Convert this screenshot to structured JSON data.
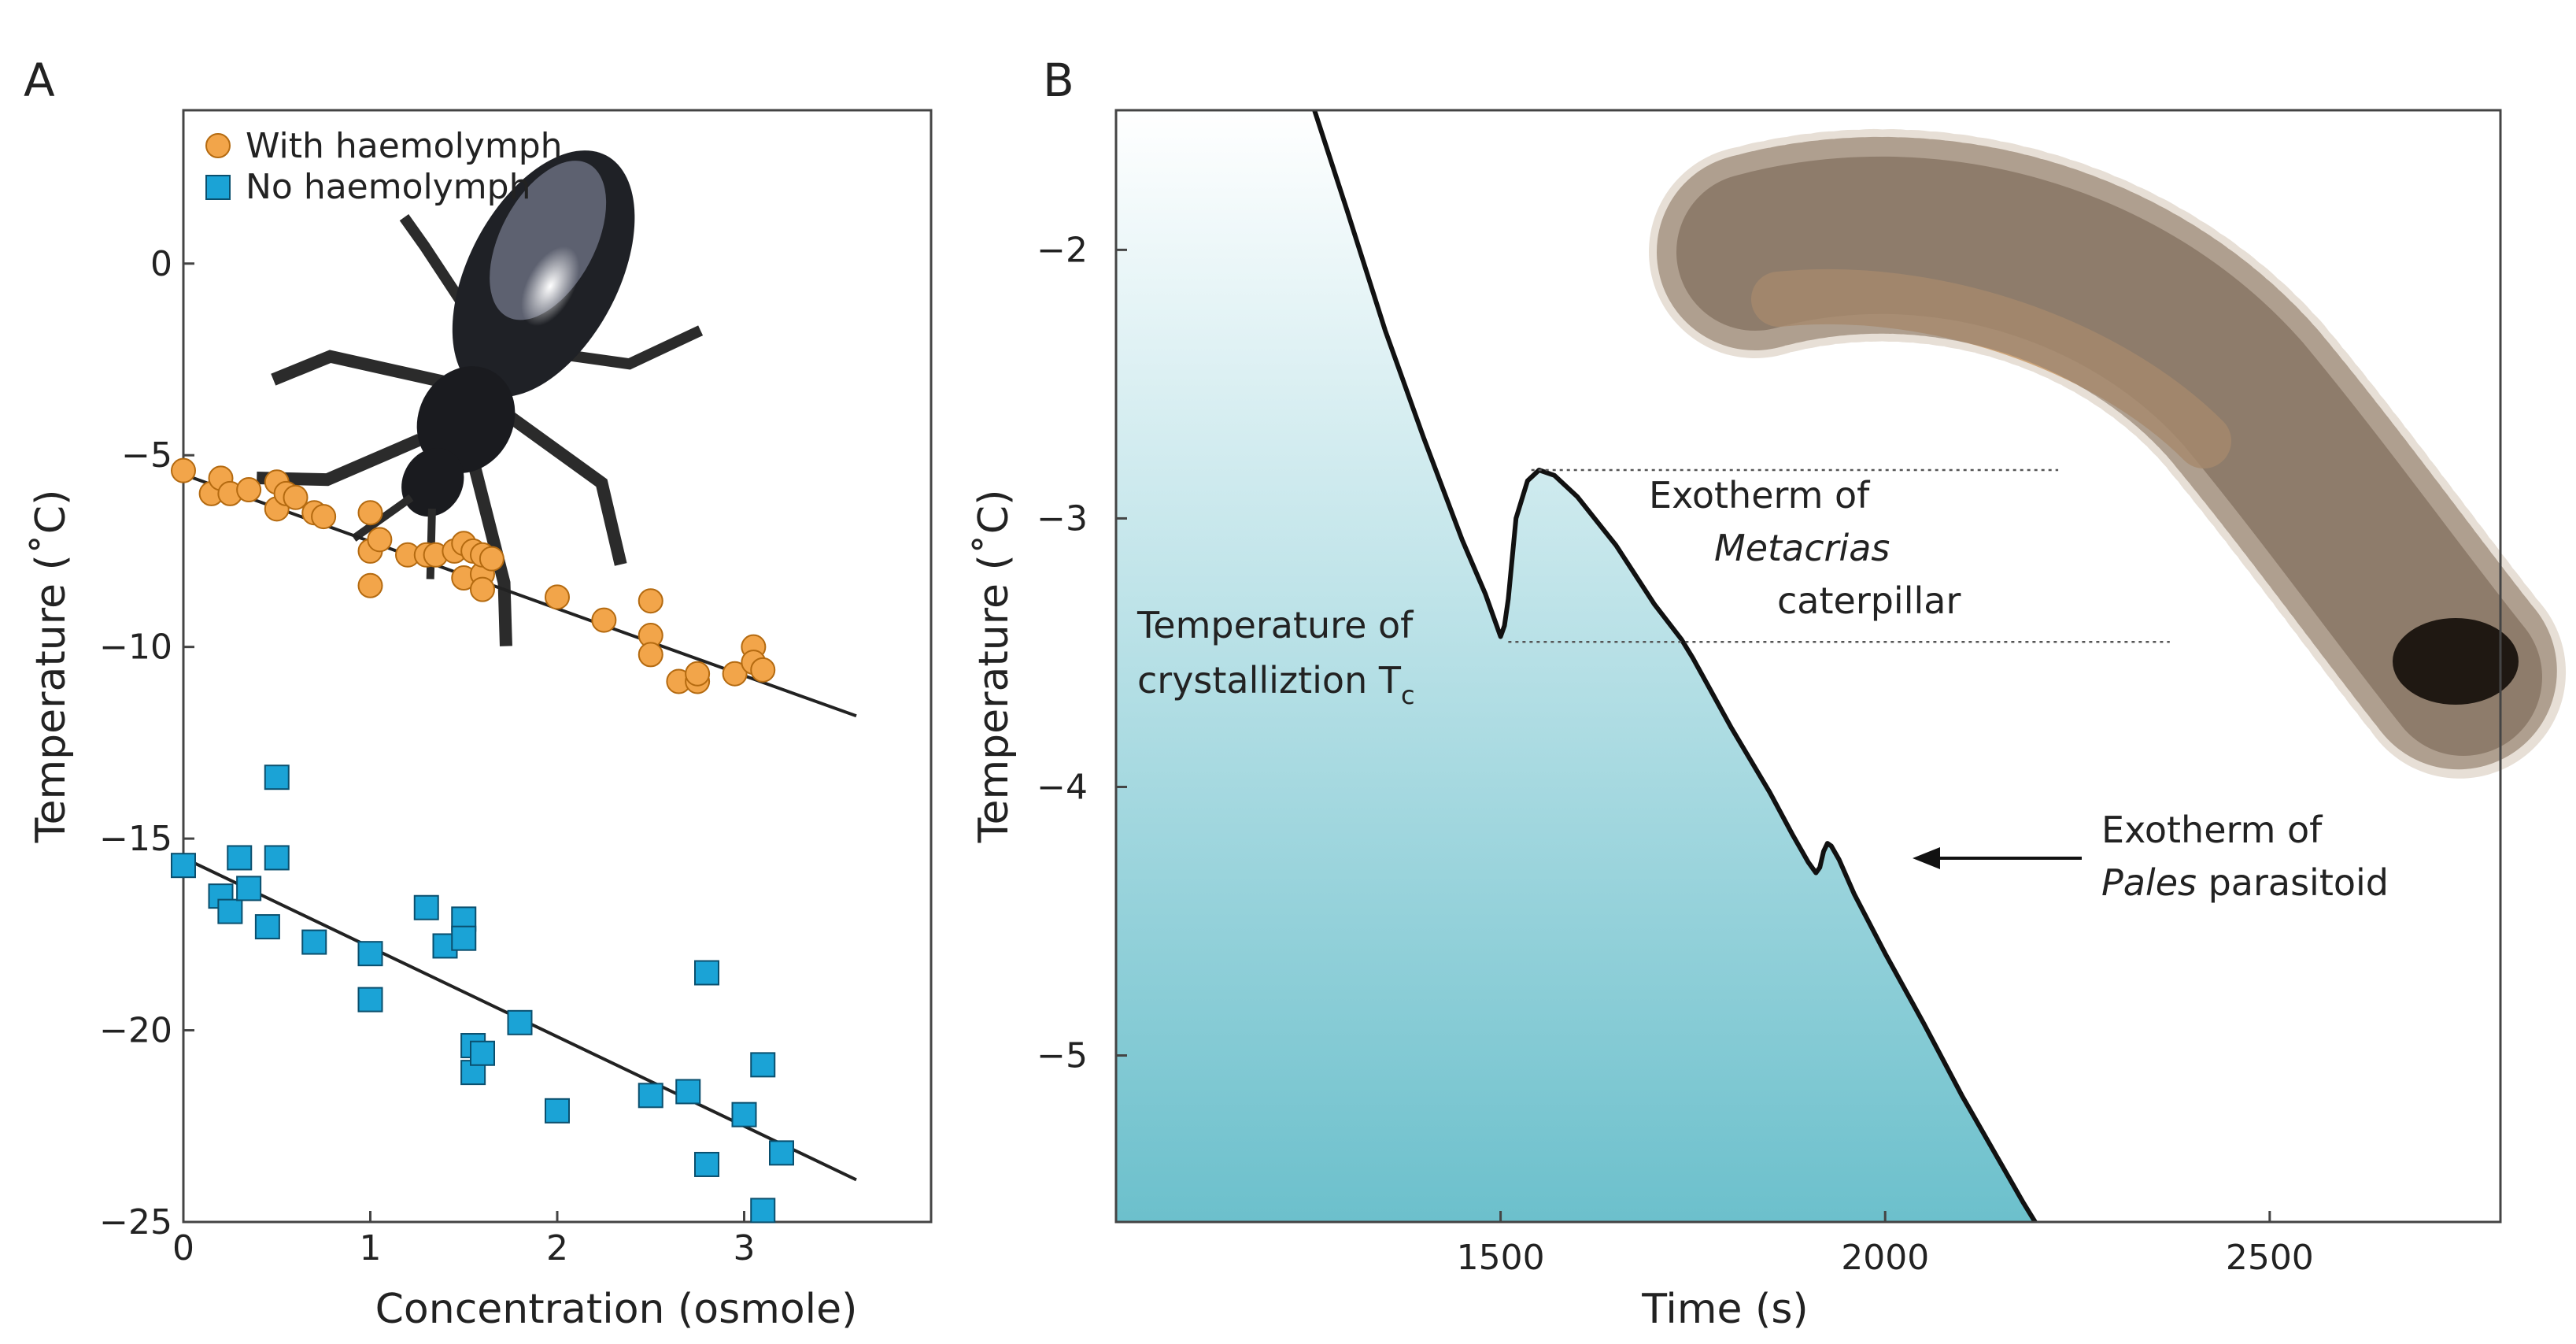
{
  "chart_data": [
    {
      "panel": "A",
      "type": "scatter",
      "xlabel": "Concentration (osmole)",
      "ylabel": "Temperature (˚C)",
      "xlim": [
        0,
        4
      ],
      "ylim": [
        -25,
        4
      ],
      "xticks": [
        0,
        1,
        2,
        3
      ],
      "yticks": [
        0,
        -5,
        -10,
        -15,
        -20,
        -25
      ],
      "xtick_labels": [
        "0",
        "1",
        "2",
        "3"
      ],
      "ytick_labels": [
        "0",
        "−5",
        "−10",
        "−15",
        "−20",
        "−25"
      ],
      "legend": {
        "position": "top-left",
        "entries": [
          "With haemolymph",
          "No haemolymph"
        ]
      },
      "series": [
        {
          "name": "With haemolymph",
          "marker": "circle",
          "color": "#f2a54a",
          "points": [
            [
              0.0,
              -5.4
            ],
            [
              0.15,
              -6.0
            ],
            [
              0.2,
              -5.6
            ],
            [
              0.25,
              -6.0
            ],
            [
              0.35,
              -5.9
            ],
            [
              0.5,
              -5.7
            ],
            [
              0.5,
              -6.4
            ],
            [
              0.55,
              -6.0
            ],
            [
              0.6,
              -6.1
            ],
            [
              0.7,
              -6.5
            ],
            [
              0.75,
              -6.6
            ],
            [
              1.0,
              -6.5
            ],
            [
              1.0,
              -7.5
            ],
            [
              1.0,
              -8.4
            ],
            [
              1.05,
              -7.2
            ],
            [
              1.2,
              -7.6
            ],
            [
              1.3,
              -7.6
            ],
            [
              1.35,
              -7.6
            ],
            [
              1.45,
              -7.5
            ],
            [
              1.5,
              -8.2
            ],
            [
              1.5,
              -7.3
            ],
            [
              1.55,
              -7.5
            ],
            [
              1.6,
              -8.1
            ],
            [
              1.6,
              -8.5
            ],
            [
              1.6,
              -7.6
            ],
            [
              1.65,
              -7.7
            ],
            [
              2.0,
              -8.7
            ],
            [
              2.25,
              -9.3
            ],
            [
              2.5,
              -8.8
            ],
            [
              2.5,
              -9.7
            ],
            [
              2.5,
              -10.2
            ],
            [
              2.65,
              -10.9
            ],
            [
              2.75,
              -10.9
            ],
            [
              2.75,
              -10.7
            ],
            [
              2.95,
              -10.7
            ],
            [
              3.05,
              -10.0
            ],
            [
              3.05,
              -10.4
            ],
            [
              3.1,
              -10.6
            ]
          ],
          "fit": {
            "x": [
              0,
              3.6
            ],
            "y": [
              -5.5,
              -11.8
            ]
          }
        },
        {
          "name": "No haemolymph",
          "marker": "square",
          "color": "#1ba3d6",
          "points": [
            [
              0.0,
              -15.7
            ],
            [
              0.2,
              -16.5
            ],
            [
              0.25,
              -16.9
            ],
            [
              0.3,
              -15.5
            ],
            [
              0.35,
              -16.3
            ],
            [
              0.45,
              -17.3
            ],
            [
              0.5,
              -15.5
            ],
            [
              0.5,
              -13.4
            ],
            [
              0.7,
              -17.7
            ],
            [
              1.0,
              -18.0
            ],
            [
              1.0,
              -19.2
            ],
            [
              1.3,
              -16.8
            ],
            [
              1.4,
              -17.8
            ],
            [
              1.5,
              -17.1
            ],
            [
              1.5,
              -17.6
            ],
            [
              1.55,
              -20.4
            ],
            [
              1.55,
              -21.1
            ],
            [
              1.6,
              -20.6
            ],
            [
              1.8,
              -19.8
            ],
            [
              2.0,
              -22.1
            ],
            [
              2.5,
              -21.7
            ],
            [
              2.7,
              -21.6
            ],
            [
              2.8,
              -23.5
            ],
            [
              2.8,
              -18.5
            ],
            [
              3.0,
              -22.2
            ],
            [
              3.1,
              -20.9
            ],
            [
              3.1,
              -24.7
            ],
            [
              3.2,
              -23.2
            ]
          ],
          "fit": {
            "x": [
              0,
              3.6
            ],
            "y": [
              -15.5,
              -23.9
            ]
          }
        }
      ]
    },
    {
      "panel": "B",
      "type": "area",
      "xlabel": "Time (s)",
      "ylabel": "Temperature (˚C)",
      "xlim": [
        1000,
        2800
      ],
      "ylim": [
        -5.62,
        -1.48
      ],
      "xticks": [
        1500,
        2000,
        2500
      ],
      "yticks": [
        -2,
        -3,
        -4,
        -5
      ],
      "xtick_labels": [
        "1500",
        "2000",
        "2500"
      ],
      "ytick_labels": [
        "−2",
        "−3",
        "−4",
        "−5"
      ],
      "gradient": {
        "top": "#ffffff",
        "bottom": "#6cc0cc"
      },
      "series": [
        {
          "name": "Temperature trace",
          "x": [
            1258,
            1300,
            1350,
            1400,
            1450,
            1480,
            1495,
            1500,
            1505,
            1510,
            1520,
            1535,
            1550,
            1570,
            1600,
            1650,
            1700,
            1735,
            1750,
            1800,
            1850,
            1880,
            1900,
            1910,
            1915,
            1920,
            1925,
            1930,
            1940,
            1960,
            2000,
            2050,
            2100,
            2150,
            2180,
            2195
          ],
          "y": [
            -1.48,
            -1.85,
            -2.3,
            -2.7,
            -3.08,
            -3.28,
            -3.4,
            -3.44,
            -3.4,
            -3.3,
            -3.0,
            -2.86,
            -2.82,
            -2.84,
            -2.92,
            -3.1,
            -3.32,
            -3.45,
            -3.52,
            -3.78,
            -4.02,
            -4.18,
            -4.28,
            -4.32,
            -4.3,
            -4.24,
            -4.21,
            -4.22,
            -4.27,
            -4.4,
            -4.62,
            -4.88,
            -5.15,
            -5.4,
            -5.55,
            -5.62
          ]
        }
      ],
      "reference_lines": [
        {
          "y": -2.82,
          "x": [
            1540,
            2225
          ]
        },
        {
          "y": -3.46,
          "x": [
            1510,
            2370
          ]
        }
      ],
      "annotations": {
        "crystallization": {
          "line1": "Temperature of",
          "line2": "crystalliztion  T",
          "subscript": "c"
        },
        "metacrias": {
          "line1": "Exotherm of",
          "line2": "Metacrias",
          "line3": "caterpillar"
        },
        "pales": {
          "line1": "Exotherm of",
          "line2_italic": "Pales",
          "line2_rest": " parasitoid"
        }
      }
    }
  ]
}
